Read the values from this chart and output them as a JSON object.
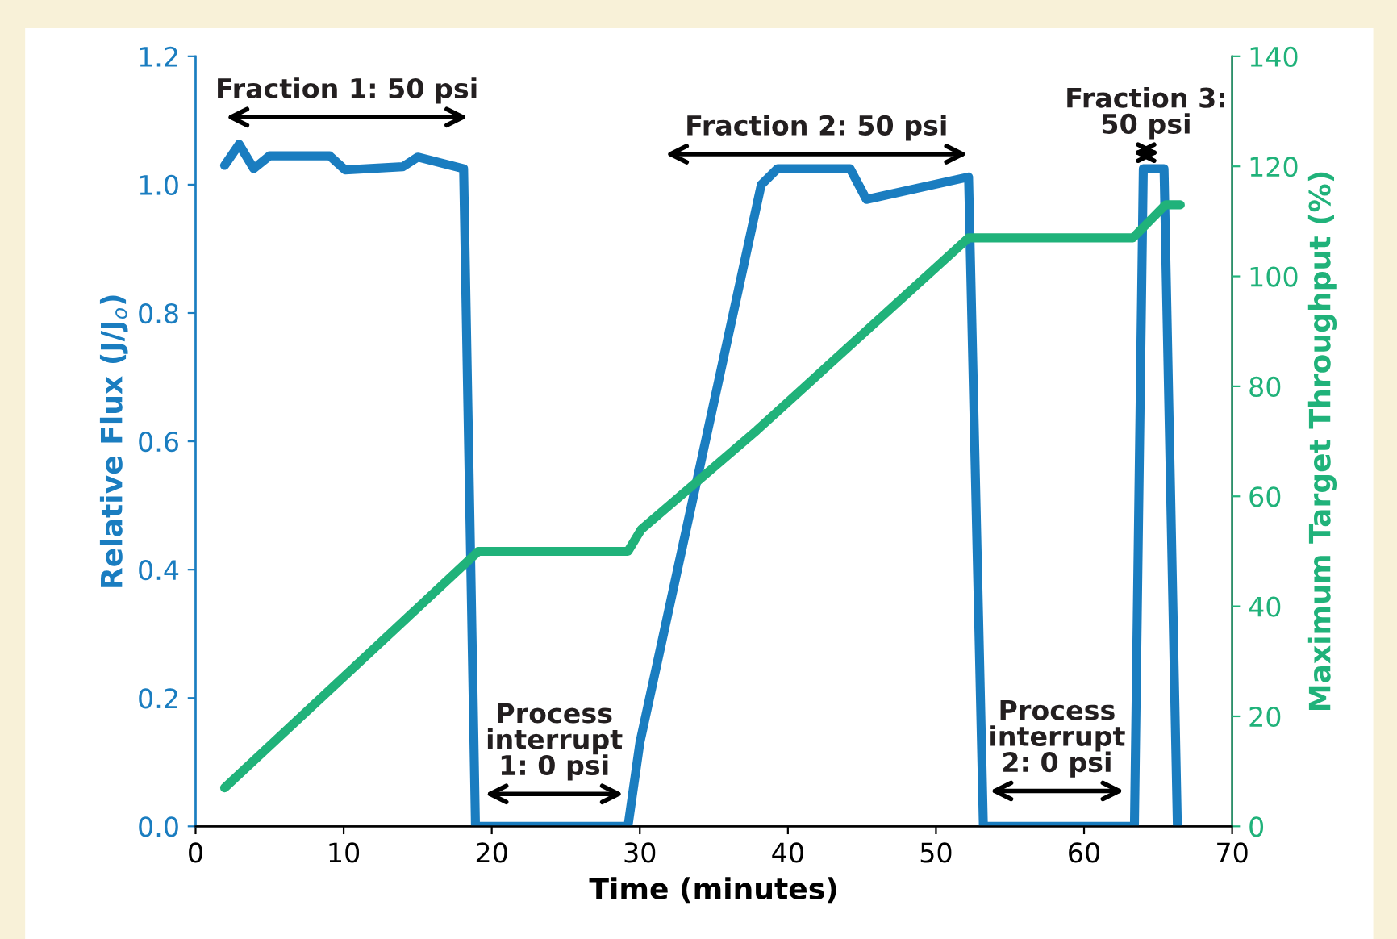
{
  "chart_data": {
    "type": "line",
    "xlabel": "Time (minutes)",
    "ylabel": "Relative Flux (J/J$_{o}$)",
    "y2label": "Maximum Target Throughput (%)",
    "series": [
      {
        "color": "#1a7dc0",
        "x": [
          1.96,
          2.94,
          3.93,
          5.0,
          9.05,
          10.1,
          14.0,
          15.0,
          18.1,
          18.9,
          29.2,
          30.0,
          38.2,
          39.3,
          44.2,
          45.3,
          52.2,
          53.2,
          63.4,
          64.0,
          65.4,
          66.3
        ],
        "values": [
          1.03,
          1.063,
          1.025,
          1.045,
          1.045,
          1.023,
          1.028,
          1.043,
          1.025,
          0,
          0,
          0.13,
          1.0,
          1.025,
          1.025,
          0.977,
          1.012,
          0,
          0,
          1.025,
          1.025,
          0
        ]
      },
      {
        "color": "#20b27a",
        "axis": "y2",
        "x": [
          1.96,
          19.1,
          29.2,
          30.1,
          37.9,
          52.2,
          63.3,
          65.5,
          66.5
        ],
        "values": [
          7,
          50,
          50,
          54,
          72,
          107,
          107,
          113,
          113
        ]
      }
    ],
    "xlim": [
      0,
      70
    ],
    "xticks": [
      0,
      10,
      20,
      30,
      40,
      50,
      60,
      70
    ],
    "ylim": [
      0,
      1.2
    ],
    "yticks": [
      {
        "value": 0,
        "label": "0.0"
      },
      {
        "value": 0.2,
        "label": "0.2"
      },
      {
        "value": 0.4,
        "label": "0.4"
      },
      {
        "value": 0.6,
        "label": "0.6"
      },
      {
        "value": 0.8,
        "label": "0.8"
      },
      {
        "value": 1.0,
        "label": "1.0"
      },
      {
        "value": 1.2,
        "label": "1.2"
      }
    ],
    "y2lim": [
      0,
      140
    ],
    "y2ticks": [
      0,
      20,
      40,
      60,
      80,
      100,
      120,
      140
    ],
    "annotations": [
      "Fraction 1: 50 psi",
      "Fraction 2: 50 psi",
      "Fraction 3:\n50 psi",
      "Process\ninterrupt\n1: 0 psi",
      "Process\ninterrupt\n2: 0 psi"
    ],
    "grid": false,
    "legend": false,
    "marker": "none",
    "line_style": "solid"
  }
}
